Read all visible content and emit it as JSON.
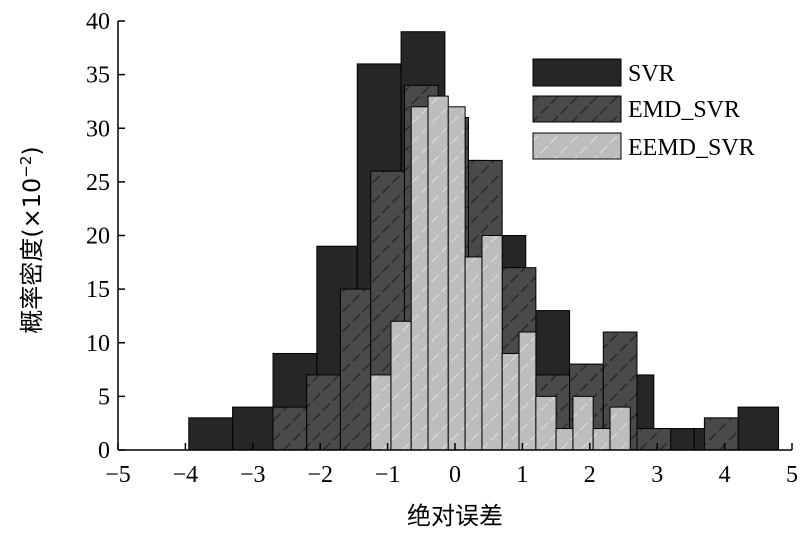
{
  "chart_data": {
    "type": "bar",
    "xlabel": "绝对误差",
    "ylabel": "概率密度(×10",
    "ylabel_sup": "−2",
    "ylabel_close": ")",
    "xlim": [
      -5,
      5
    ],
    "ylim": [
      0,
      40
    ],
    "xticks": [
      -5,
      -4,
      -3,
      -2,
      -1,
      0,
      1,
      2,
      3,
      4,
      5
    ],
    "xtick_labels": [
      "−5",
      "−4",
      "−3",
      "−2",
      "−1",
      "0",
      "1",
      "2",
      "3",
      "4",
      "5"
    ],
    "yticks": [
      0,
      5,
      10,
      15,
      20,
      25,
      30,
      35,
      40
    ],
    "ytick_labels": [
      "0",
      "5",
      "10",
      "15",
      "20",
      "25",
      "30",
      "35",
      "40"
    ],
    "grid": false,
    "legend": {
      "position": "top-right"
    },
    "series": [
      {
        "name": "SVR",
        "color": "#262626",
        "bins": [
          {
            "x0": -3.95,
            "x1": -3.3,
            "value": 3
          },
          {
            "x0": -3.3,
            "x1": -2.7,
            "value": 4
          },
          {
            "x0": -2.7,
            "x1": -2.05,
            "value": 9
          },
          {
            "x0": -2.05,
            "x1": -1.45,
            "value": 19
          },
          {
            "x0": -1.45,
            "x1": -0.8,
            "value": 36
          },
          {
            "x0": -0.8,
            "x1": -0.15,
            "value": 39
          },
          {
            "x0": -0.15,
            "x1": 0.45,
            "value": 27
          },
          {
            "x0": 0.45,
            "x1": 1.05,
            "value": 20
          },
          {
            "x0": 1.05,
            "x1": 1.7,
            "value": 13
          },
          {
            "x0": 1.7,
            "x1": 2.3,
            "value": 8
          },
          {
            "x0": 2.3,
            "x1": 2.95,
            "value": 7
          },
          {
            "x0": 2.95,
            "x1": 3.55,
            "value": 2
          },
          {
            "x0": 3.55,
            "x1": 4.2,
            "value": 2
          },
          {
            "x0": 4.2,
            "x1": 4.8,
            "value": 4
          }
        ]
      },
      {
        "name": "EMD_SVR",
        "color": "#4a4a4a",
        "bins": [
          {
            "x0": -2.7,
            "x1": -2.2,
            "value": 4
          },
          {
            "x0": -2.2,
            "x1": -1.7,
            "value": 7
          },
          {
            "x0": -1.7,
            "x1": -1.25,
            "value": 15
          },
          {
            "x0": -1.25,
            "x1": -0.75,
            "value": 26
          },
          {
            "x0": -0.75,
            "x1": -0.25,
            "value": 34
          },
          {
            "x0": -0.25,
            "x1": 0.2,
            "value": 31
          },
          {
            "x0": 0.2,
            "x1": 0.7,
            "value": 27
          },
          {
            "x0": 0.7,
            "x1": 1.2,
            "value": 17
          },
          {
            "x0": 1.2,
            "x1": 1.7,
            "value": 7
          },
          {
            "x0": 1.7,
            "x1": 2.2,
            "value": 8
          },
          {
            "x0": 2.2,
            "x1": 2.7,
            "value": 11
          },
          {
            "x0": 2.7,
            "x1": 3.2,
            "value": 2
          },
          {
            "x0": 3.7,
            "x1": 4.2,
            "value": 3
          }
        ]
      },
      {
        "name": "EEMD_SVR",
        "color": "#bdbdbd",
        "bins": [
          {
            "x0": -1.25,
            "x1": -0.95,
            "value": 7
          },
          {
            "x0": -0.95,
            "x1": -0.65,
            "value": 12
          },
          {
            "x0": -0.65,
            "x1": -0.4,
            "value": 32
          },
          {
            "x0": -0.4,
            "x1": -0.1,
            "value": 33
          },
          {
            "x0": -0.1,
            "x1": 0.15,
            "value": 32
          },
          {
            "x0": 0.15,
            "x1": 0.4,
            "value": 18
          },
          {
            "x0": 0.4,
            "x1": 0.7,
            "value": 20
          },
          {
            "x0": 0.7,
            "x1": 0.95,
            "value": 9
          },
          {
            "x0": 0.95,
            "x1": 1.2,
            "value": 11
          },
          {
            "x0": 1.2,
            "x1": 1.5,
            "value": 5
          },
          {
            "x0": 1.5,
            "x1": 1.75,
            "value": 2
          },
          {
            "x0": 1.75,
            "x1": 2.05,
            "value": 5
          },
          {
            "x0": 2.05,
            "x1": 2.3,
            "value": 2
          },
          {
            "x0": 2.3,
            "x1": 2.6,
            "value": 4
          }
        ]
      }
    ]
  }
}
